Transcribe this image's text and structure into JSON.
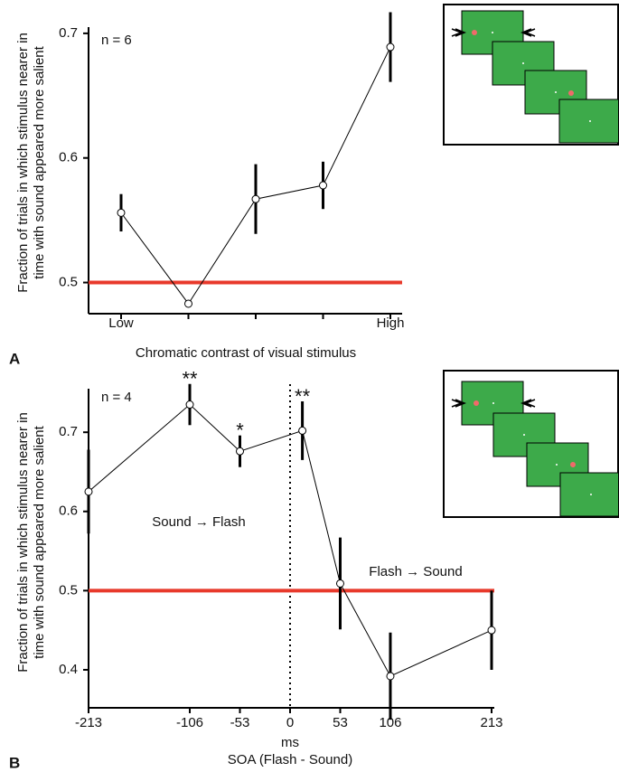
{
  "chart_data": [
    {
      "type": "line",
      "panel_label": "A",
      "ylabel": [
        "Fraction of trials in which stimulus nearer in",
        "time with sound appeared more salient"
      ],
      "xlabel": "Chromatic contrast of visual stimulus",
      "annotations": [
        "n = 6"
      ],
      "categories": [
        "Low",
        null,
        null,
        null,
        "High"
      ],
      "series": [
        {
          "color": "#000000",
          "values": [
            0.556,
            0.483,
            0.567,
            0.578,
            0.689
          ],
          "errors": [
            0.015,
            null,
            0.028,
            0.019,
            0.028
          ]
        }
      ],
      "ylim": [
        0.475,
        0.705
      ],
      "yticks": [
        0.5,
        0.6,
        0.7
      ],
      "reference_line": {
        "value": 0.5,
        "color": "#e8392b"
      }
    },
    {
      "type": "line",
      "panel_label": "B",
      "ylabel": [
        "Fraction of trials in which stimulus nearer in",
        "time with sound appeared more salient"
      ],
      "xlabel": [
        "ms",
        "SOA (Flash - Sound)"
      ],
      "annotations": [
        "n = 4",
        "Sound → Flash",
        "Flash → Sound"
      ],
      "x": [
        -213,
        -106,
        -53,
        13,
        53,
        106,
        213
      ],
      "series": [
        {
          "color": "#000000",
          "values": [
            0.625,
            0.735,
            0.676,
            0.702,
            0.509,
            0.392,
            0.45
          ],
          "errors": [
            0.053,
            0.026,
            0.02,
            0.037,
            0.058,
            0.055,
            0.05
          ]
        }
      ],
      "significance": [
        null,
        "**",
        "*",
        "**",
        null,
        null,
        null
      ],
      "xlim": [
        -213,
        213
      ],
      "xticks": [
        -213,
        -106,
        -53,
        0,
        53,
        106,
        213
      ],
      "ylim": [
        0.352,
        0.755
      ],
      "yticks": [
        0.4,
        0.5,
        0.6,
        0.7
      ],
      "reference_line": {
        "value": 0.5,
        "color": "#e8392b"
      },
      "reference_x": 0
    }
  ]
}
